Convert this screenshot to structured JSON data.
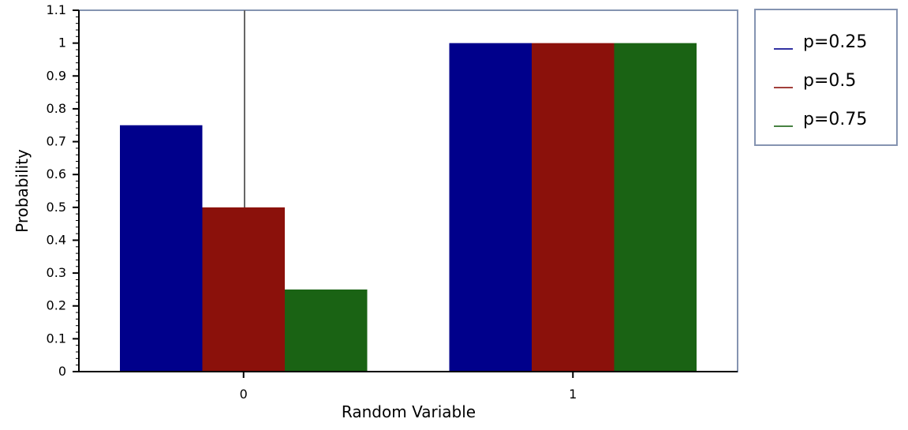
{
  "chart_data": {
    "type": "bar",
    "title": "",
    "xlabel": "Random Variable",
    "ylabel": "Probability",
    "categories": [
      "0",
      "1"
    ],
    "ylim": [
      0,
      1.1
    ],
    "yticks": [
      "0",
      "0.1",
      "0.2",
      "0.3",
      "0.4",
      "0.5",
      "0.6",
      "0.7",
      "0.8",
      "0.9",
      "1",
      "1.1"
    ],
    "series": [
      {
        "name": "p=0.25",
        "color": "#00008b",
        "values": [
          0.75,
          1
        ]
      },
      {
        "name": "p=0.5",
        "color": "#8b110b",
        "values": [
          0.5,
          1
        ]
      },
      {
        "name": "p=0.75",
        "color": "#1a6314",
        "values": [
          0.25,
          1
        ]
      }
    ],
    "legend_position": "top-right",
    "grid": false
  }
}
